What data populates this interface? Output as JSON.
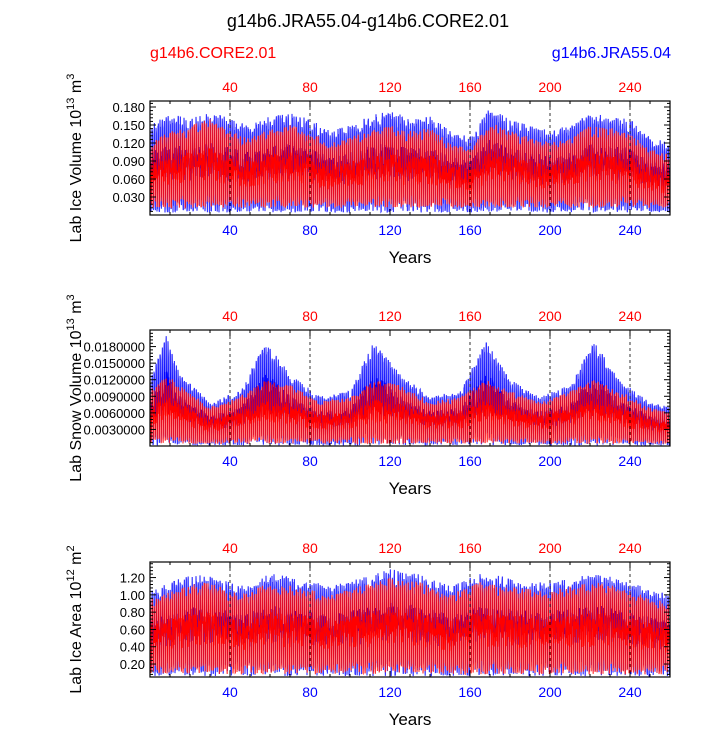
{
  "title": "g14b6.JRA55.04-g14b6.CORE2.01",
  "legend": {
    "left_label": "g14b6.CORE2.01",
    "right_label": "g14b6.JRA55.04",
    "left_color": "#ff0000",
    "right_color": "#0000ff"
  },
  "colors": {
    "jra": "#0000ff",
    "core": "#ff0000",
    "axis": "#000000",
    "grid": "#000000"
  },
  "chart_data": [
    {
      "type": "line",
      "ylabel": "Lab Ice Volume 10^13 m^3",
      "ylabel_base": "Lab Ice Volume 10",
      "ylabel_exp1": "13",
      "ylabel_mid": " m",
      "ylabel_exp2": "3",
      "xlabel": "Years",
      "xlim": [
        0,
        260
      ],
      "ylim": [
        0.0,
        0.19
      ],
      "xticks_top": [
        "40",
        "80",
        "120",
        "160",
        "200",
        "240"
      ],
      "xticks_bottom": [
        "40",
        "80",
        "120",
        "160",
        "200",
        "240"
      ],
      "yticks": [
        "0.030",
        "0.060",
        "0.090",
        "0.120",
        "0.150",
        "0.180"
      ],
      "ytick_values": [
        0.03,
        0.06,
        0.09,
        0.12,
        0.15,
        0.18
      ],
      "dashed_years": [
        40,
        80,
        160,
        200,
        240
      ],
      "series": [
        {
          "name": "g14b6.JRA55.04",
          "color": "#0000ff",
          "seasonal_min": 0.004,
          "annual_max_envelope": [
            [
              0,
              0.15
            ],
            [
              10,
              0.17
            ],
            [
              20,
              0.16
            ],
            [
              30,
              0.175
            ],
            [
              40,
              0.16
            ],
            [
              50,
              0.15
            ],
            [
              60,
              0.165
            ],
            [
              70,
              0.17
            ],
            [
              80,
              0.16
            ],
            [
              90,
              0.14
            ],
            [
              100,
              0.15
            ],
            [
              110,
              0.165
            ],
            [
              120,
              0.175
            ],
            [
              130,
              0.16
            ],
            [
              140,
              0.165
            ],
            [
              150,
              0.14
            ],
            [
              160,
              0.13
            ],
            [
              170,
              0.18
            ],
            [
              180,
              0.16
            ],
            [
              190,
              0.15
            ],
            [
              200,
              0.14
            ],
            [
              210,
              0.15
            ],
            [
              220,
              0.17
            ],
            [
              230,
              0.165
            ],
            [
              240,
              0.16
            ],
            [
              250,
              0.13
            ],
            [
              260,
              0.12
            ]
          ]
        },
        {
          "name": "g14b6.CORE2.01",
          "color": "#ff0000",
          "seasonal_min": 0.012,
          "annual_max_envelope": [
            [
              0,
              0.12
            ],
            [
              10,
              0.14
            ],
            [
              20,
              0.15
            ],
            [
              30,
              0.16
            ],
            [
              40,
              0.14
            ],
            [
              50,
              0.13
            ],
            [
              60,
              0.145
            ],
            [
              70,
              0.15
            ],
            [
              80,
              0.14
            ],
            [
              90,
              0.12
            ],
            [
              100,
              0.13
            ],
            [
              110,
              0.14
            ],
            [
              120,
              0.15
            ],
            [
              130,
              0.14
            ],
            [
              140,
              0.145
            ],
            [
              150,
              0.12
            ],
            [
              160,
              0.11
            ],
            [
              170,
              0.155
            ],
            [
              180,
              0.14
            ],
            [
              190,
              0.13
            ],
            [
              200,
              0.12
            ],
            [
              210,
              0.13
            ],
            [
              220,
              0.15
            ],
            [
              230,
              0.145
            ],
            [
              240,
              0.14
            ],
            [
              250,
              0.11
            ],
            [
              260,
              0.1
            ]
          ]
        }
      ]
    },
    {
      "type": "line",
      "ylabel": "Lab Snow Volume 10^13 m^3",
      "ylabel_base": "Lab Snow Volume 10",
      "ylabel_exp1": "13",
      "ylabel_mid": " m",
      "ylabel_exp2": "3",
      "xlabel": "Years",
      "xlim": [
        0,
        260
      ],
      "ylim": [
        0.0,
        0.021
      ],
      "xticks_top": [
        "40",
        "80",
        "120",
        "160",
        "200",
        "240"
      ],
      "xticks_bottom": [
        "40",
        "80",
        "120",
        "160",
        "200",
        "240"
      ],
      "yticks": [
        "0.0030000",
        "0.0060000",
        "0.0090000",
        "0.0120000",
        "0.0150000",
        "0.0180000"
      ],
      "ytick_values": [
        0.003,
        0.006,
        0.009,
        0.012,
        0.015,
        0.018
      ],
      "dashed_years": [
        40,
        80,
        160,
        200,
        240
      ],
      "series": [
        {
          "name": "g14b6.JRA55.04",
          "color": "#0000ff",
          "seasonal_min": 0.0001,
          "annual_max_envelope": [
            [
              0,
              0.012
            ],
            [
              8,
              0.02
            ],
            [
              15,
              0.013
            ],
            [
              30,
              0.008
            ],
            [
              45,
              0.01
            ],
            [
              58,
              0.019
            ],
            [
              70,
              0.013
            ],
            [
              85,
              0.009
            ],
            [
              100,
              0.01
            ],
            [
              112,
              0.019
            ],
            [
              125,
              0.013
            ],
            [
              140,
              0.009
            ],
            [
              155,
              0.01
            ],
            [
              168,
              0.019
            ],
            [
              180,
              0.012
            ],
            [
              195,
              0.009
            ],
            [
              210,
              0.011
            ],
            [
              222,
              0.019
            ],
            [
              235,
              0.012
            ],
            [
              250,
              0.008
            ],
            [
              260,
              0.007
            ]
          ]
        },
        {
          "name": "g14b6.CORE2.01",
          "color": "#ff0000",
          "seasonal_min": 0.0004,
          "annual_max_envelope": [
            [
              0,
              0.01
            ],
            [
              8,
              0.013
            ],
            [
              15,
              0.011
            ],
            [
              30,
              0.007
            ],
            [
              45,
              0.009
            ],
            [
              58,
              0.012
            ],
            [
              70,
              0.011
            ],
            [
              85,
              0.008
            ],
            [
              100,
              0.009
            ],
            [
              112,
              0.012
            ],
            [
              125,
              0.011
            ],
            [
              140,
              0.008
            ],
            [
              155,
              0.009
            ],
            [
              168,
              0.012
            ],
            [
              180,
              0.01
            ],
            [
              195,
              0.008
            ],
            [
              210,
              0.01
            ],
            [
              222,
              0.012
            ],
            [
              235,
              0.01
            ],
            [
              250,
              0.007
            ],
            [
              260,
              0.006
            ]
          ]
        }
      ]
    },
    {
      "type": "line",
      "ylabel": "Lab Ice Area 10^12 m^2",
      "ylabel_base": "Lab Ice Area 10",
      "ylabel_exp1": "12",
      "ylabel_mid": " m",
      "ylabel_exp2": "2",
      "xlabel": "Years",
      "xlim": [
        0,
        260
      ],
      "ylim": [
        0.05,
        1.38
      ],
      "xticks_top": [
        "40",
        "80",
        "120",
        "160",
        "200",
        "240"
      ],
      "xticks_bottom": [
        "40",
        "80",
        "120",
        "160",
        "200",
        "240"
      ],
      "yticks": [
        "0.20",
        "0.40",
        "0.60",
        "0.80",
        "1.00",
        "1.20"
      ],
      "ytick_values": [
        0.2,
        0.4,
        0.6,
        0.8,
        1.0,
        1.2
      ],
      "dashed_years": [
        40,
        80,
        160,
        200,
        240
      ],
      "series": [
        {
          "name": "g14b6.JRA55.04",
          "color": "#0000ff",
          "seasonal_min": 0.06,
          "annual_max_envelope": [
            [
              0,
              1.05
            ],
            [
              15,
              1.2
            ],
            [
              30,
              1.25
            ],
            [
              45,
              1.1
            ],
            [
              60,
              1.25
            ],
            [
              75,
              1.2
            ],
            [
              90,
              1.1
            ],
            [
              105,
              1.2
            ],
            [
              120,
              1.3
            ],
            [
              135,
              1.25
            ],
            [
              150,
              1.1
            ],
            [
              165,
              1.25
            ],
            [
              180,
              1.2
            ],
            [
              195,
              1.15
            ],
            [
              210,
              1.2
            ],
            [
              225,
              1.25
            ],
            [
              240,
              1.15
            ],
            [
              260,
              1.0
            ]
          ]
        },
        {
          "name": "g14b6.CORE2.01",
          "color": "#ff0000",
          "seasonal_min": 0.08,
          "annual_max_envelope": [
            [
              0,
              0.95
            ],
            [
              15,
              1.1
            ],
            [
              30,
              1.15
            ],
            [
              45,
              1.0
            ],
            [
              60,
              1.15
            ],
            [
              75,
              1.1
            ],
            [
              90,
              1.0
            ],
            [
              105,
              1.1
            ],
            [
              120,
              1.2
            ],
            [
              135,
              1.15
            ],
            [
              150,
              1.0
            ],
            [
              165,
              1.15
            ],
            [
              180,
              1.1
            ],
            [
              195,
              1.05
            ],
            [
              210,
              1.1
            ],
            [
              225,
              1.15
            ],
            [
              240,
              1.05
            ],
            [
              260,
              0.9
            ]
          ]
        }
      ]
    }
  ]
}
